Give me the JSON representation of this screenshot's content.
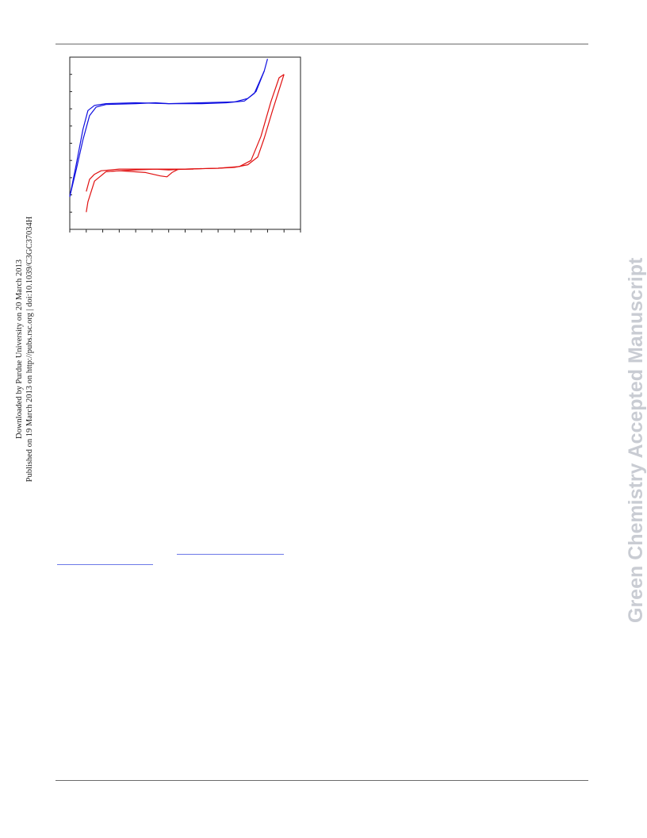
{
  "margin_note": {
    "line1": "Downloaded by Purdue University on 20 March 2013",
    "line2": "Published on 19 March 2013 on http://pubs.rsc.org | doi:10.1039/C3GC37034H"
  },
  "watermark": "Green Chemistry Accepted Manuscript",
  "colors": {
    "series_blue": "#1010e0",
    "series_red": "#e01010",
    "axis": "#222222"
  },
  "chart_data": {
    "type": "line",
    "title": "",
    "xlabel": "",
    "ylabel": "",
    "xlim": [
      0,
      14
    ],
    "ylim": [
      0,
      10
    ],
    "x_ticks": 14,
    "y_ticks": 10,
    "grid": false,
    "series": [
      {
        "color": "#1010e0",
        "paths": [
          [
            [
              0,
              1.9
            ],
            [
              0.4,
              3.8
            ],
            [
              0.8,
              5.8
            ],
            [
              1.1,
              6.9
            ],
            [
              1.5,
              7.2
            ],
            [
              2.2,
              7.3
            ],
            [
              4,
              7.35
            ],
            [
              6,
              7.3
            ],
            [
              8,
              7.35
            ],
            [
              10,
              7.4
            ],
            [
              10.8,
              7.6
            ],
            [
              11.3,
              8.0
            ],
            [
              11.8,
              9.2
            ],
            [
              12,
              9.9
            ]
          ],
          [
            [
              11.8,
              9.2
            ],
            [
              11.2,
              7.9
            ],
            [
              10.6,
              7.45
            ],
            [
              9.5,
              7.35
            ],
            [
              8,
              7.3
            ],
            [
              6,
              7.3
            ],
            [
              5.2,
              7.35
            ],
            [
              4,
              7.3
            ],
            [
              2.2,
              7.25
            ],
            [
              1.6,
              7.1
            ],
            [
              1.2,
              6.6
            ],
            [
              0.8,
              5.2
            ],
            [
              0.4,
              3.5
            ],
            [
              0,
              1.9
            ]
          ]
        ]
      },
      {
        "color": "#e01010",
        "paths": [
          [
            [
              1,
              2.2
            ],
            [
              1.2,
              2.9
            ],
            [
              1.5,
              3.2
            ],
            [
              1.9,
              3.4
            ],
            [
              3,
              3.5
            ],
            [
              5,
              3.5
            ],
            [
              7,
              3.5
            ],
            [
              9,
              3.55
            ],
            [
              10.3,
              3.65
            ],
            [
              11,
              4.0
            ],
            [
              11.6,
              5.4
            ],
            [
              12.2,
              7.4
            ],
            [
              12.7,
              8.8
            ],
            [
              13,
              9.0
            ]
          ],
          [
            [
              13,
              9.0
            ],
            [
              12.3,
              6.9
            ],
            [
              11.8,
              5.3
            ],
            [
              11.4,
              4.2
            ],
            [
              10.8,
              3.75
            ],
            [
              10,
              3.6
            ],
            [
              9,
              3.55
            ],
            [
              7,
              3.5
            ],
            [
              6,
              3.45
            ],
            [
              5.2,
              3.5
            ],
            [
              4,
              3.45
            ],
            [
              3,
              3.4
            ],
            [
              2.2,
              3.35
            ],
            [
              1.5,
              2.8
            ],
            [
              1.1,
              1.6
            ],
            [
              1,
              1.0
            ]
          ],
          [
            [
              2.2,
              3.35
            ],
            [
              3,
              3.4
            ],
            [
              4.6,
              3.3
            ],
            [
              5.5,
              3.1
            ],
            [
              5.9,
              3.05
            ],
            [
              6.2,
              3.3
            ],
            [
              6.6,
              3.5
            ],
            [
              7.5,
              3.5
            ]
          ]
        ]
      }
    ]
  }
}
